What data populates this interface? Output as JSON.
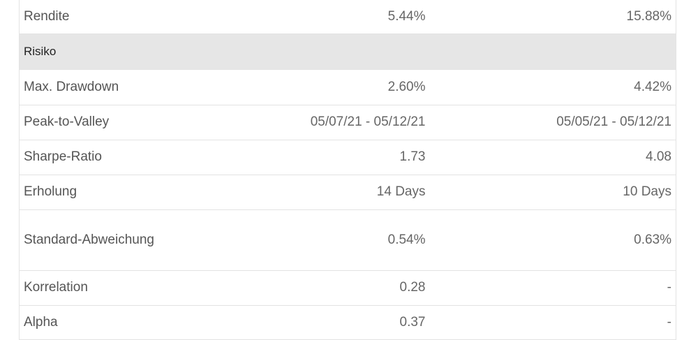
{
  "table": {
    "top_row": [
      "Rendite",
      "5.44%",
      "15.88%"
    ],
    "section": "Risiko",
    "rows": [
      [
        "Max. Drawdown",
        "2.60%",
        "4.42%"
      ],
      [
        "Peak-to-Valley",
        "05/07/21 - 05/12/21",
        "05/05/21 - 05/12/21"
      ],
      [
        "Sharpe-Ratio",
        "1.73",
        "4.08"
      ],
      [
        "Erholung",
        "14 Days",
        "10 Days"
      ],
      [
        "Standard-Abweichung",
        "0.54%",
        "0.63%"
      ],
      [
        "Korrelation",
        "0.28",
        "-"
      ],
      [
        "Alpha",
        "0.37",
        "-"
      ]
    ]
  }
}
